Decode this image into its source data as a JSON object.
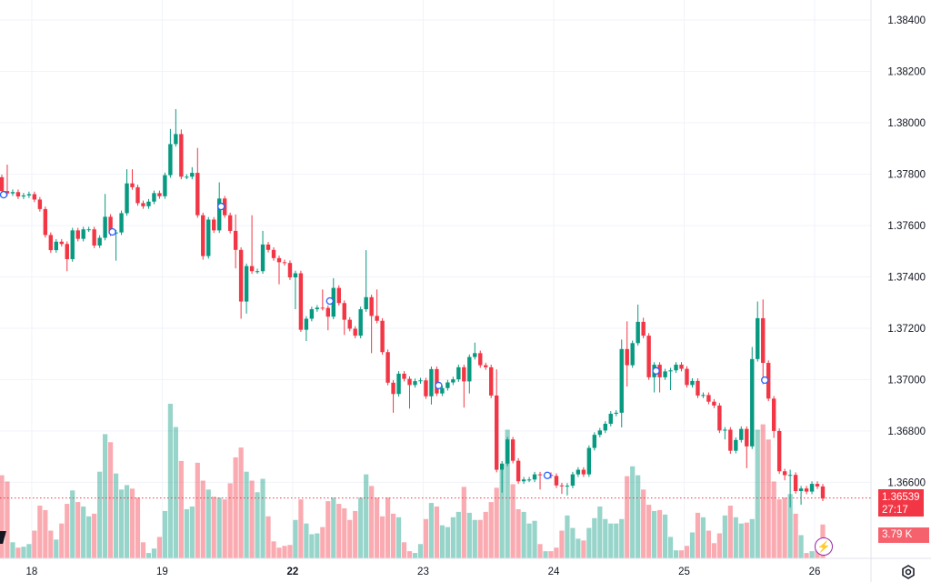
{
  "chart_data": {
    "type": "candlestick",
    "title": "",
    "colors": {
      "up": "#089981",
      "down": "#F23645",
      "volume_up": "#089981",
      "volume_down": "#F23645",
      "marker": "#2962FF",
      "last_price": "#F23645"
    },
    "first_open": 1.37788,
    "closes": [
      1.37734,
      1.37725,
      1.3773,
      1.37713,
      1.37717,
      1.37722,
      1.37701,
      1.37664,
      1.37563,
      1.37504,
      1.37537,
      1.37528,
      1.37469,
      1.37581,
      1.37548,
      1.37585,
      1.37585,
      1.37522,
      1.37552,
      1.37634,
      1.37569,
      1.37573,
      1.37648,
      1.37764,
      1.37749,
      1.37687,
      1.37675,
      1.37693,
      1.37726,
      1.37714,
      1.37796,
      1.37917,
      1.37956,
      1.3779,
      1.3779,
      1.37805,
      1.3764,
      1.37481,
      1.37623,
      1.37581,
      1.37705,
      1.3764,
      1.37579,
      1.37505,
      1.37304,
      1.37442,
      1.37422,
      1.37422,
      1.37526,
      1.37505,
      1.37473,
      1.37457,
      1.37454,
      1.37398,
      1.37414,
      1.37194,
      1.37237,
      1.37274,
      1.3728,
      1.37279,
      1.37245,
      1.37357,
      1.37298,
      1.37233,
      1.37198,
      1.37171,
      1.37274,
      1.37321,
      1.37248,
      1.37229,
      1.37107,
      1.36988,
      1.36944,
      1.37023,
      1.37003,
      1.36979,
      1.36994,
      1.36997,
      1.36935,
      1.37041,
      1.36946,
      1.36967,
      1.36989,
      1.37001,
      1.37048,
      1.36993,
      1.37088,
      1.37103,
      1.37056,
      1.37048,
      1.36938,
      1.36649,
      1.36673,
      1.36767,
      1.36684,
      1.36604,
      1.36611,
      1.36611,
      1.36631,
      1.36629,
      1.36629,
      1.36625,
      1.36588,
      1.36585,
      1.36587,
      1.36631,
      1.36649,
      1.36631,
      1.36734,
      1.36785,
      1.36802,
      1.36828,
      1.36867,
      1.36871,
      1.37119,
      1.37056,
      1.37142,
      1.37225,
      1.37171,
      1.37009,
      1.37058,
      1.37009,
      1.37032,
      1.37036,
      1.37058,
      1.37042,
      1.36979,
      1.36995,
      1.36938,
      1.3694,
      1.36914,
      1.36899,
      1.36802,
      1.36805,
      1.36723,
      1.36765,
      1.36808,
      1.3674,
      1.3708,
      1.37239,
      1.37065,
      1.36926,
      1.368,
      1.36643,
      1.36628,
      1.36629,
      1.36566,
      1.36576,
      1.36564,
      1.36594,
      1.36584,
      1.36537
    ],
    "default_wick": 0.0001,
    "wick_overrides": {
      "1": [
        1.37837,
        null
      ],
      "12": [
        null,
        1.37422
      ],
      "19": [
        1.37723,
        null
      ],
      "21": [
        null,
        1.37463
      ],
      "23": [
        1.37819,
        null
      ],
      "24": [
        1.37819,
        null
      ],
      "31": [
        1.37976,
        null
      ],
      "32": [
        1.38053,
        null
      ],
      "33": [
        1.37974,
        null
      ],
      "35": [
        1.37827,
        null
      ],
      "36": [
        1.37902,
        null
      ],
      "37": [
        null,
        1.37467
      ],
      "40": [
        1.37768,
        null
      ],
      "43": [
        1.37643,
        1.37433
      ],
      "44": [
        null,
        1.37237
      ],
      "45": [
        null,
        1.37257
      ],
      "46": [
        1.3764,
        null
      ],
      "48": [
        1.37579,
        null
      ],
      "51": [
        null,
        1.37371
      ],
      "54": [
        null,
        1.37274
      ],
      "55": [
        null,
        1.37186
      ],
      "56": [
        null,
        1.3715
      ],
      "59": [
        1.37351,
        null
      ],
      "60": [
        null,
        1.37192
      ],
      "61": [
        1.37395,
        null
      ],
      "63": [
        null,
        1.37174
      ],
      "67": [
        1.37504,
        null
      ],
      "68": [
        null,
        1.37103
      ],
      "69": [
        1.37351,
        null
      ],
      "72": [
        null,
        1.36871
      ],
      "75": [
        null,
        1.36887
      ],
      "79": [
        null,
        1.36903
      ],
      "85": [
        null,
        1.36891
      ],
      "86": [
        null,
        1.36946
      ],
      "87": [
        1.37144,
        null
      ],
      "91": [
        1.3704,
        null
      ],
      "92": [
        null,
        1.3656
      ],
      "99": [
        null,
        1.36572
      ],
      "103": [
        null,
        1.36555
      ],
      "104": [
        null,
        1.36549
      ],
      "114": [
        1.37156,
        1.36814
      ],
      "115": [
        1.37227,
        1.36973
      ],
      "117": [
        1.37292,
        null
      ],
      "118": [
        1.37241,
        null
      ],
      "120": [
        null,
        1.3695
      ],
      "121": [
        null,
        1.3695
      ],
      "123": [
        null,
        1.36959
      ],
      "133": [
        null,
        1.36767
      ],
      "134": [
        null,
        1.36711
      ],
      "137": [
        null,
        1.36655
      ],
      "138": [
        1.37127,
        null
      ],
      "139": [
        1.37304,
        null
      ],
      "140": [
        1.37312,
        1.36982
      ],
      "142": [
        null,
        1.36773
      ],
      "144": [
        null,
        1.36608
      ],
      "145": [
        1.36649,
        1.36502
      ],
      "147": [
        null,
        1.36513
      ]
    },
    "volumes_k": [
      9.3,
      8.6,
      1.8,
      1.2,
      1.3,
      1.6,
      3.1,
      5.9,
      5.4,
      3.1,
      2.1,
      3.9,
      6.1,
      7.6,
      6.3,
      5.8,
      4.7,
      5.0,
      9.7,
      13.9,
      13.0,
      9.5,
      7.7,
      8.2,
      7.8,
      6.8,
      1.8,
      0.6,
      1.1,
      2.4,
      5.3,
      17.3,
      14.7,
      10.9,
      5.5,
      5.8,
      10.7,
      8.7,
      7.7,
      6.9,
      6.8,
      6.6,
      8.4,
      11.3,
      12.4,
      9.7,
      8.7,
      7.4,
      8.9,
      4.7,
      1.9,
      1.2,
      1.4,
      1.5,
      4.3,
      6.6,
      3.9,
      2.7,
      2.8,
      3.5,
      6.4,
      6.8,
      6.1,
      5.6,
      4.3,
      5.3,
      6.8,
      9.4,
      8.1,
      6.8,
      4.7,
      6.8,
      5.0,
      4.6,
      1.8,
      0.8,
      0.6,
      1.6,
      4.4,
      6.2,
      5.8,
      3.7,
      3.5,
      4.6,
      5.2,
      8.0,
      5.1,
      4.3,
      4.3,
      5.2,
      6.3,
      7.9,
      9.9,
      14.4,
      8.3,
      5.5,
      5.2,
      3.9,
      4.2,
      1.6,
      0.8,
      0.8,
      1.2,
      3.1,
      4.8,
      3.4,
      2.2,
      2.0,
      3.4,
      4.5,
      5.8,
      4.4,
      3.9,
      3.9,
      4.4,
      9.2,
      10.3,
      9.3,
      7.7,
      6.0,
      5.3,
      5.4,
      4.9,
      2.4,
      0.9,
      0.9,
      1.4,
      2.9,
      5.1,
      4.6,
      3.1,
      1.7,
      2.8,
      4.8,
      5.9,
      4.6,
      3.9,
      4.0,
      4.4,
      14.4,
      15.0,
      13.3,
      8.6,
      6.6,
      6.8,
      7.2,
      5.0,
      2.6,
      0.6,
      0.8,
      1.5,
      3.79
    ],
    "markers": [
      {
        "i": 0,
        "price": 1.3772
      },
      {
        "i": 20,
        "price": 1.37575
      },
      {
        "i": 40,
        "price": 1.37674
      },
      {
        "i": 60,
        "price": 1.37306
      },
      {
        "i": 80,
        "price": 1.36977
      },
      {
        "i": 100,
        "price": 1.36627
      },
      {
        "i": 120,
        "price": 1.37034
      },
      {
        "i": 140,
        "price": 1.36998
      }
    ],
    "ylim": [
      1.36304,
      1.38478
    ],
    "y_ticks": [
      "1.38400",
      "1.38200",
      "1.38000",
      "1.37800",
      "1.37600",
      "1.37400",
      "1.37200",
      "1.37000",
      "1.36800",
      "1.36600"
    ],
    "y_tick_values": [
      1.384,
      1.382,
      1.38,
      1.378,
      1.376,
      1.374,
      1.372,
      1.37,
      1.368,
      1.366
    ],
    "x_ticks": [
      {
        "label": "18",
        "i": 5.5,
        "bold": false
      },
      {
        "label": "19",
        "i": 29.5,
        "bold": false
      },
      {
        "label": "22",
        "i": 53.5,
        "bold": true
      },
      {
        "label": "23",
        "i": 77.5,
        "bold": false
      },
      {
        "label": "24",
        "i": 101.5,
        "bold": false
      },
      {
        "label": "25",
        "i": 125.5,
        "bold": false
      },
      {
        "label": "26",
        "i": 149.5,
        "bold": false
      }
    ],
    "volume_max_k": 17.3,
    "last_price": "1.36539",
    "last_price_value": 1.36539,
    "countdown": "27:17",
    "last_volume": "3.79 K",
    "grid": true
  }
}
